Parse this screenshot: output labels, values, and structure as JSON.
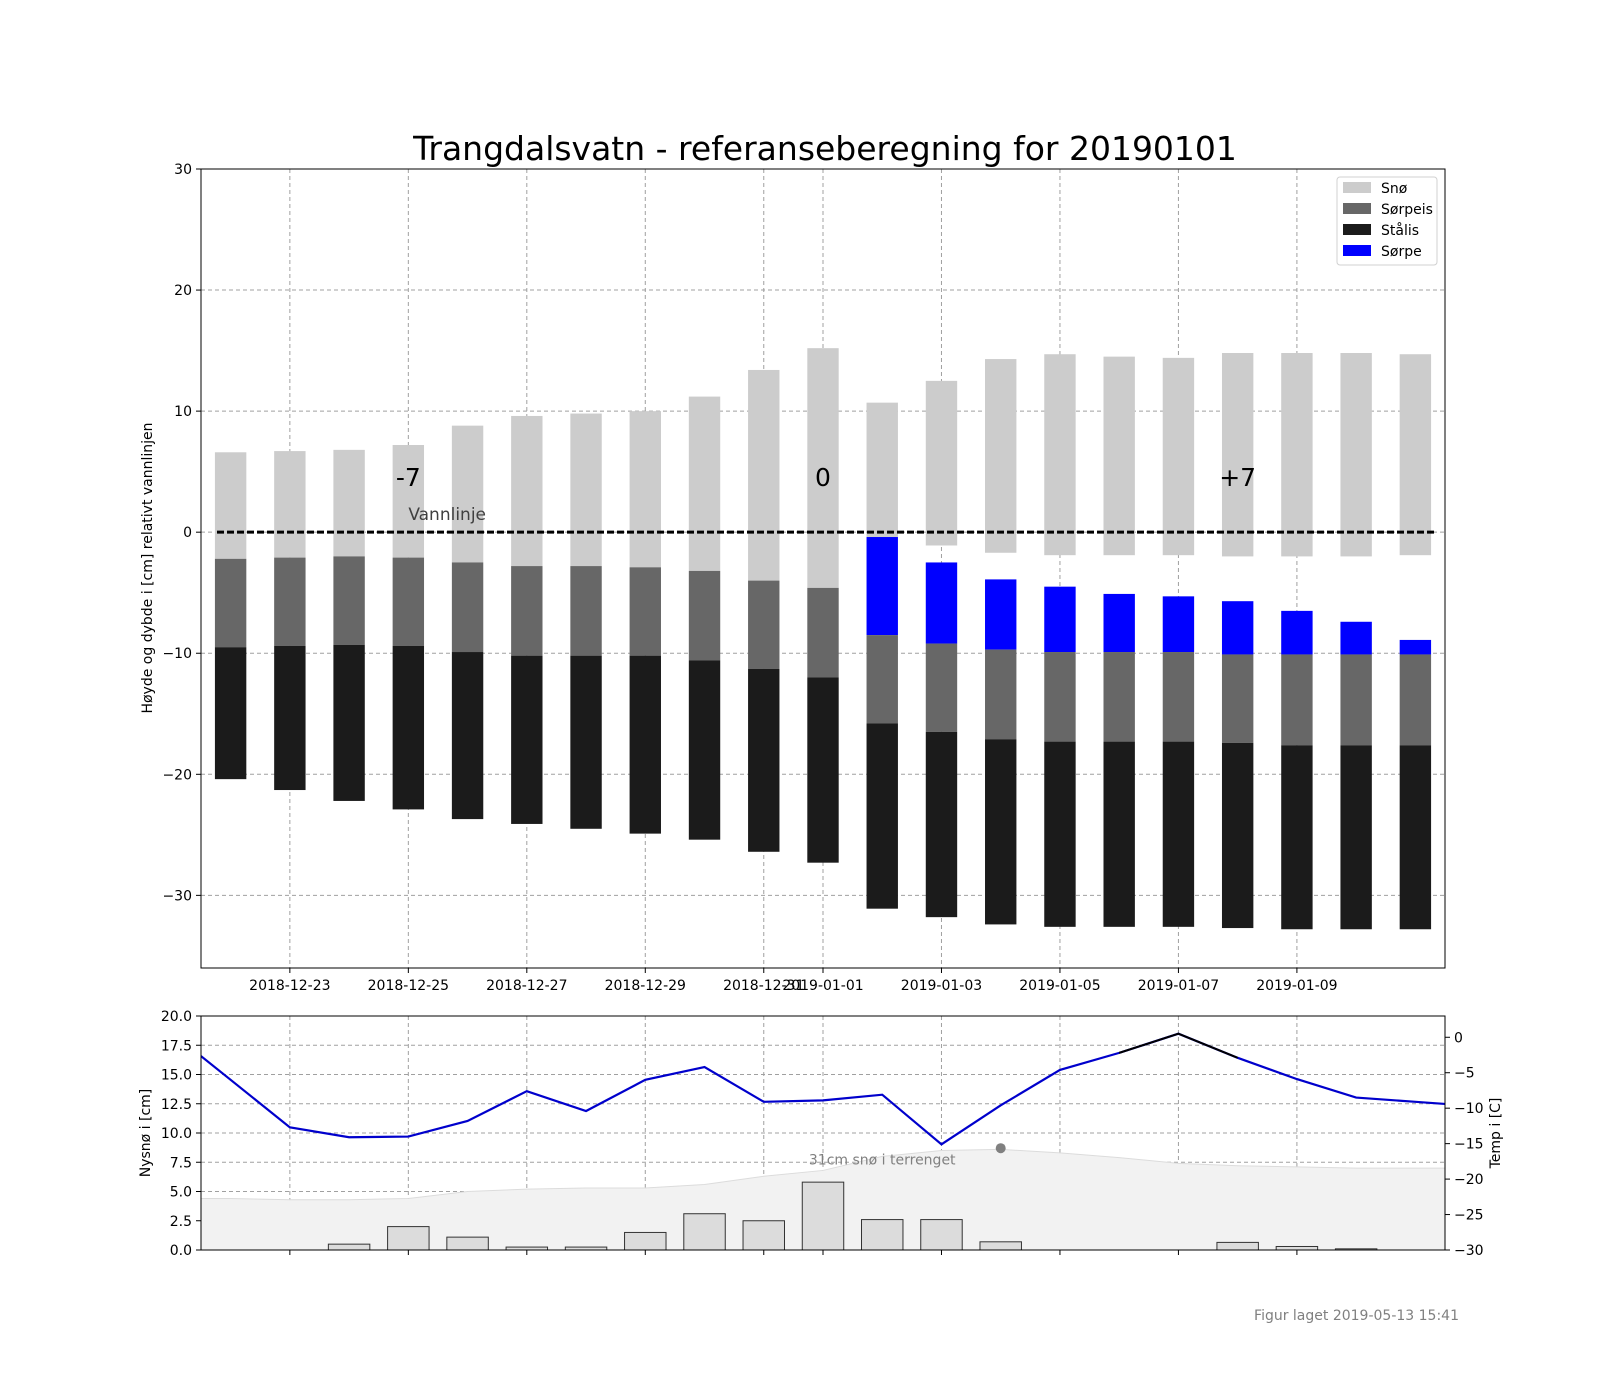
{
  "title": "Trangdalsvatn - referanseberegning for 20190101",
  "footer": "Figur laget 2019-05-13 15:41",
  "chart_data": [
    {
      "type": "bar",
      "stacked": true,
      "ylabel": "Høyde og dybde i [cm] relativt vannlinjen",
      "ylim": [
        -36,
        30
      ],
      "yticks": [
        30,
        20,
        10,
        0,
        -10,
        -20,
        -30
      ],
      "ytick_labels": [
        "30",
        "20",
        "10",
        "0",
        "−10",
        "−20",
        "−30"
      ],
      "xlim": [
        "2018-12-21T12:00",
        "2019-01-11T12:00"
      ],
      "xticks": [
        "2018-12-23",
        "2018-12-25",
        "2018-12-27",
        "2018-12-29",
        "2018-12-31",
        "2019-01-01",
        "2019-01-03",
        "2019-01-05",
        "2019-01-07",
        "2019-01-09"
      ],
      "grid": true,
      "legend_position": "top-right",
      "colors": {
        "sno": "#cccccc",
        "sorpeis": "#676767",
        "stalis": "#1b1b1b",
        "sorpe": "#0000ff",
        "waterline": "#000000"
      },
      "legend": [
        "Snø",
        "Sørpeis",
        "Stålis",
        "Sørpe"
      ],
      "waterline_label": "Vannlinje",
      "day_markers": [
        {
          "x": "2018-12-25",
          "label": "-7"
        },
        {
          "x": "2019-01-01",
          "label": "0"
        },
        {
          "x": "2019-01-08",
          "label": "+7"
        }
      ],
      "dates": [
        "2018-12-22",
        "2018-12-23",
        "2018-12-24",
        "2018-12-25",
        "2018-12-26",
        "2018-12-27",
        "2018-12-28",
        "2018-12-29",
        "2018-12-30",
        "2018-12-31",
        "2019-01-01",
        "2019-01-02",
        "2019-01-03",
        "2019-01-04",
        "2019-01-05",
        "2019-01-06",
        "2019-01-07",
        "2019-01-08",
        "2019-01-09",
        "2019-01-10",
        "2019-01-11"
      ],
      "series": [
        {
          "name": "Snø",
          "bottom": [
            -2.2,
            -2.1,
            -2.0,
            -2.1,
            -2.5,
            -2.8,
            -2.8,
            -2.9,
            -3.2,
            -4.0,
            -4.6,
            -0.4,
            -1.1,
            -1.7,
            -1.9,
            -1.9,
            -1.9,
            -2.0,
            -2.0,
            -2.0,
            -1.9
          ],
          "top": [
            6.6,
            6.7,
            6.8,
            7.2,
            8.8,
            9.6,
            9.8,
            10.0,
            11.2,
            13.4,
            15.2,
            10.7,
            12.5,
            14.3,
            14.7,
            14.5,
            14.4,
            14.8,
            14.8,
            14.8,
            14.7
          ]
        },
        {
          "name": "Sørpe",
          "bottom": [
            null,
            null,
            null,
            null,
            null,
            null,
            null,
            null,
            null,
            null,
            null,
            -8.5,
            -9.2,
            -9.7,
            -9.9,
            -9.9,
            -9.9,
            -10.1,
            -10.1,
            -10.1,
            -10.1
          ],
          "top": [
            null,
            null,
            null,
            null,
            null,
            null,
            null,
            null,
            null,
            null,
            null,
            -0.4,
            -2.5,
            -3.9,
            -4.5,
            -5.1,
            -5.3,
            -5.7,
            -6.5,
            -7.4,
            -8.9
          ]
        },
        {
          "name": "Sørpeis",
          "bottom": [
            -9.5,
            -9.4,
            -9.3,
            -9.4,
            -9.9,
            -10.2,
            -10.2,
            -10.2,
            -10.6,
            -11.3,
            -12.0,
            -15.8,
            -16.5,
            -17.1,
            -17.3,
            -17.3,
            -17.3,
            -17.4,
            -17.6,
            -17.6,
            -17.6
          ],
          "top": [
            -2.2,
            -2.1,
            -2.0,
            -2.1,
            -2.5,
            -2.8,
            -2.8,
            -2.9,
            -3.2,
            -4.0,
            -4.6,
            -8.5,
            -9.2,
            -9.7,
            -9.9,
            -9.9,
            -9.9,
            -10.1,
            -10.1,
            -10.1,
            -10.1
          ]
        },
        {
          "name": "Stålis",
          "bottom": [
            -20.4,
            -21.3,
            -22.2,
            -22.9,
            -23.7,
            -24.1,
            -24.5,
            -24.9,
            -25.4,
            -26.4,
            -27.3,
            -31.1,
            -31.8,
            -32.4,
            -32.6,
            -32.6,
            -32.6,
            -32.7,
            -32.8,
            -32.8,
            -32.8
          ],
          "top": [
            -9.5,
            -9.4,
            -9.3,
            -9.4,
            -9.9,
            -10.2,
            -10.2,
            -10.2,
            -10.6,
            -11.3,
            -12.0,
            -15.8,
            -16.5,
            -17.1,
            -17.3,
            -17.3,
            -17.3,
            -17.4,
            -17.6,
            -17.6,
            -17.6
          ]
        }
      ]
    },
    {
      "type": "bar",
      "ylabel": "Nysnø i [cm]",
      "ylim": [
        0,
        20
      ],
      "yticks": [
        0,
        2.5,
        5,
        7.5,
        10,
        12.5,
        15,
        17.5,
        20
      ],
      "ytick_labels": [
        "0.0",
        "2.5",
        "5.0",
        "7.5",
        "10.0",
        "12.5",
        "15.0",
        "17.5",
        "20.0"
      ],
      "grid": true,
      "colors": {
        "bars": "#dcdcdc",
        "terrain": "#f2f2f2",
        "temp_line": "#0000cc",
        "temp_line_alt": "#000000",
        "marker": "#808080"
      },
      "new_snow": {
        "dates": [
          "2018-12-24",
          "2018-12-25",
          "2018-12-26",
          "2018-12-27",
          "2018-12-28",
          "2018-12-29",
          "2018-12-30",
          "2018-12-31",
          "2019-01-01",
          "2019-01-02",
          "2019-01-03",
          "2019-01-04",
          "2019-01-05",
          "2019-01-08",
          "2019-01-09",
          "2019-01-10"
        ],
        "values": [
          0.5,
          2.0,
          1.1,
          0.25,
          0.25,
          1.5,
          3.1,
          2.5,
          5.8,
          2.6,
          2.6,
          0.7,
          0,
          0.65,
          0.3,
          0.1
        ]
      },
      "terrain_snow": {
        "dates": [
          "2018-12-22",
          "2018-12-23",
          "2018-12-24",
          "2018-12-25",
          "2018-12-26",
          "2018-12-27",
          "2018-12-28",
          "2018-12-29",
          "2018-12-30",
          "2018-12-31",
          "2019-01-01",
          "2019-01-02",
          "2019-01-03",
          "2019-01-04",
          "2019-01-05",
          "2019-01-06",
          "2019-01-07",
          "2019-01-08",
          "2019-01-09",
          "2019-01-10",
          "2019-01-11"
        ],
        "values": [
          4.4,
          4.3,
          4.3,
          4.4,
          5.0,
          5.2,
          5.3,
          5.3,
          5.6,
          6.3,
          6.8,
          8.0,
          8.5,
          8.6,
          8.3,
          7.9,
          7.4,
          7.2,
          7.1,
          7.0,
          7.0
        ]
      },
      "terrain_label": "31cm snø i terrenget",
      "terrain_marker": {
        "x": "2019-01-04",
        "y": 8.7
      },
      "temperature": {
        "ylabel": "Temp i [C]",
        "ylim": [
          -30,
          3
        ],
        "yticks": [
          0,
          -5,
          -10,
          -15,
          -20,
          -25,
          -30
        ],
        "ytick_labels": [
          "0",
          "−5",
          "−10",
          "−15",
          "−20",
          "−25",
          "−30"
        ],
        "dates": [
          "2018-12-22",
          "2018-12-23",
          "2018-12-24",
          "2018-12-25",
          "2018-12-26",
          "2018-12-27",
          "2018-12-28",
          "2018-12-29",
          "2018-12-30",
          "2018-12-31",
          "2019-01-01",
          "2019-01-02",
          "2019-01-03",
          "2019-01-04",
          "2019-01-05",
          "2019-01-06",
          "2019-01-07",
          "2019-01-08",
          "2019-01-09",
          "2019-01-10",
          "2019-01-11"
        ],
        "values": [
          -6.0,
          -12.7,
          -14.1,
          -14.0,
          -11.8,
          -7.6,
          -10.4,
          -6.0,
          -4.2,
          -9.1,
          -8.9,
          -8.1,
          -15.1,
          -9.6,
          -4.6,
          -2.2,
          0.5,
          -2.9,
          -5.9,
          -8.5,
          -9.1
        ]
      }
    }
  ]
}
